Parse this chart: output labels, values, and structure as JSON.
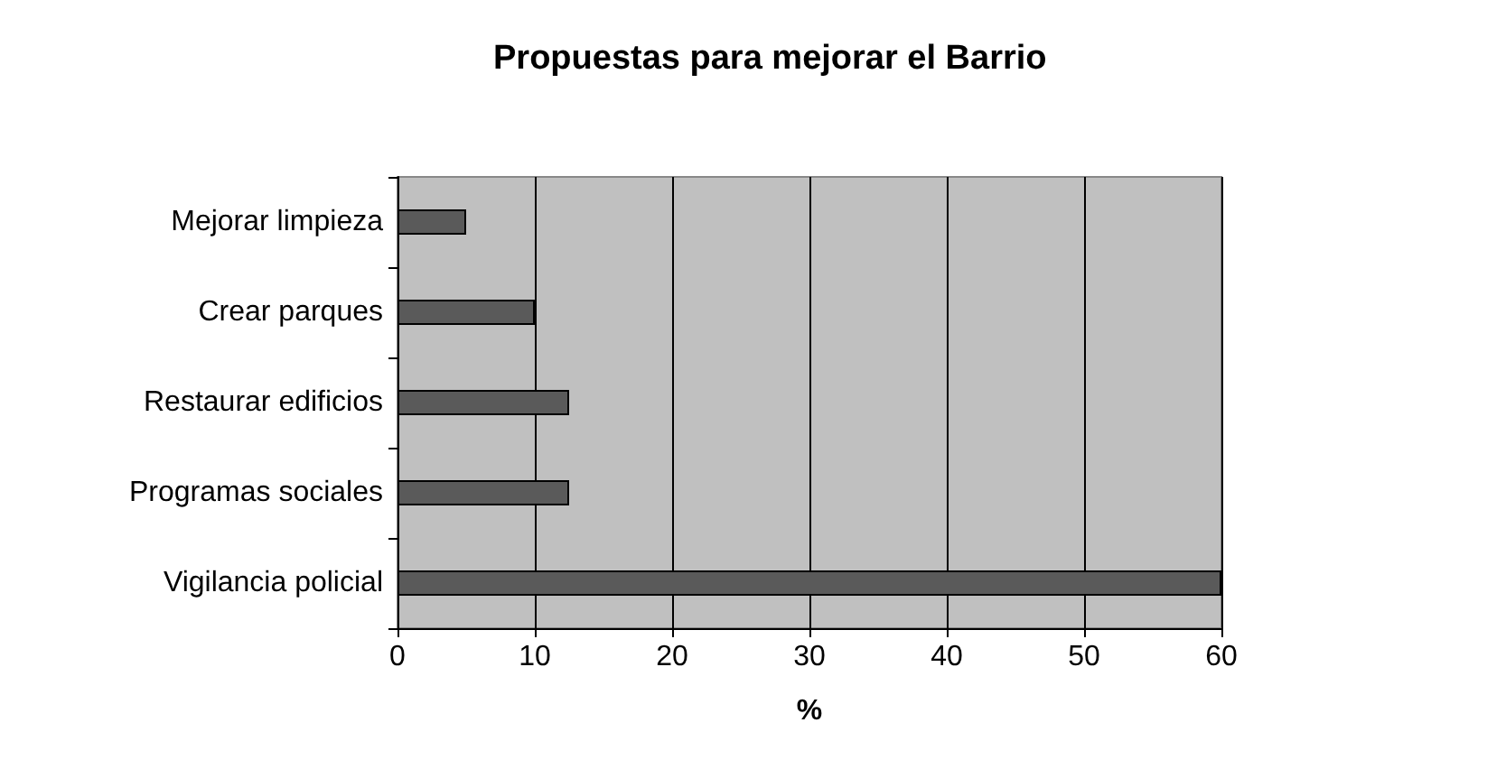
{
  "chart_data": {
    "type": "bar",
    "orientation": "horizontal",
    "title": "Propuestas para mejorar el Barrio",
    "xlabel": "%",
    "categories": [
      "Mejorar limpieza",
      "Crear parques",
      "Restaurar edificios",
      "Programas sociales",
      "Vigilancia policial"
    ],
    "values": [
      5,
      10,
      12.5,
      12.5,
      60
    ],
    "color": "#5a5a5a",
    "xlim": [
      0,
      60
    ],
    "xticks": [
      0,
      10,
      20,
      30,
      40,
      50,
      60
    ],
    "grid": "x"
  }
}
